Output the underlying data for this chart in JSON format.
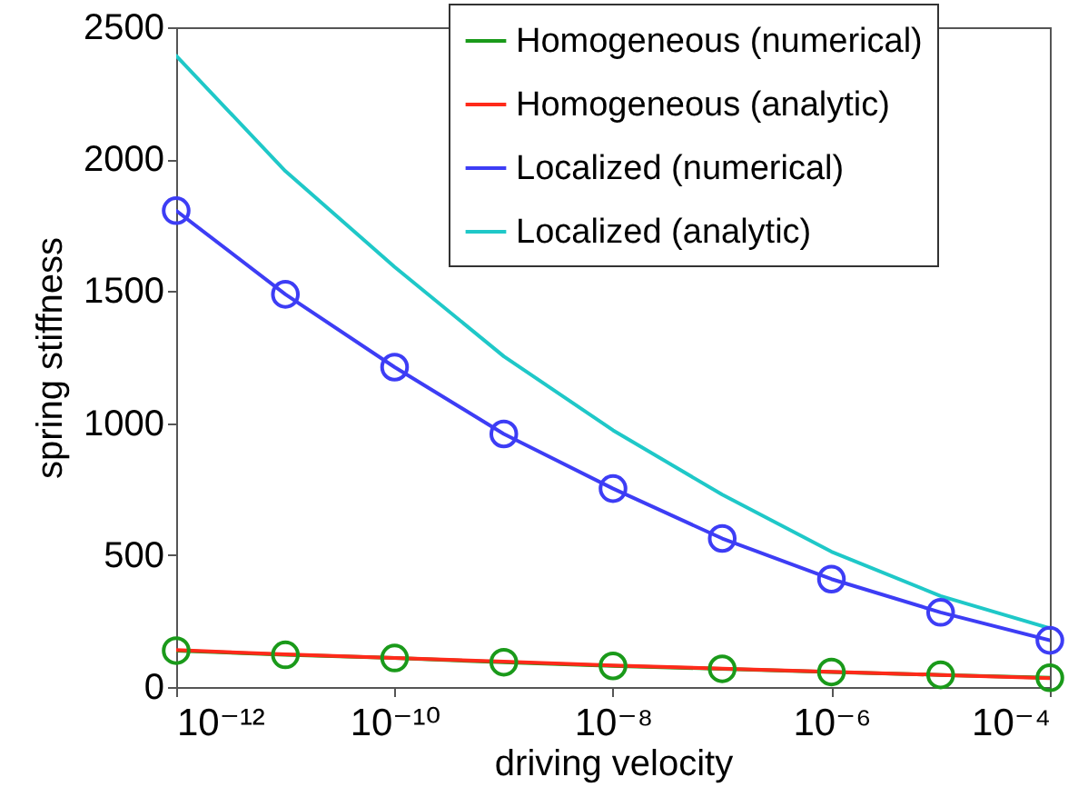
{
  "chart_data": {
    "type": "line",
    "xlabel": "driving velocity",
    "ylabel": "spring stiffness",
    "log": "x",
    "grid": false,
    "legend": "top right",
    "x": [
      1e-12,
      1e-11,
      1e-10,
      1e-09,
      1e-08,
      1e-07,
      1e-06,
      1e-05,
      0.0001
    ],
    "xlim": [
      1e-12,
      0.0001
    ],
    "xticks": [
      {
        "value": 1e-12,
        "label": "10⁻¹²"
      },
      {
        "value": 1e-10,
        "label": "10⁻¹⁰"
      },
      {
        "value": 1e-08,
        "label": "10⁻⁸"
      },
      {
        "value": 1e-06,
        "label": "10⁻⁶"
      },
      {
        "value": 0.0001,
        "label": "10⁻⁴"
      }
    ],
    "ylim": [
      0,
      2500
    ],
    "yticks": [
      0,
      500,
      1000,
      1500,
      2000,
      2500
    ],
    "series": [
      {
        "name": "Homogeneous (numerical)",
        "color": "#1a9a1a",
        "marker": "circle",
        "values": [
          138,
          122,
          110,
          94,
          80,
          69,
          57,
          46,
          35
        ]
      },
      {
        "name": "Homogeneous (analytic)",
        "color": "#ff2a1a",
        "marker": "none",
        "values": [
          140,
          124,
          110,
          96,
          82,
          70,
          58,
          46,
          34
        ]
      },
      {
        "name": "Localized (numerical)",
        "color": "#3d3df5",
        "marker": "circle",
        "values": [
          1805,
          1488,
          1212,
          959,
          752,
          563,
          409,
          283,
          177
        ]
      },
      {
        "name": "Localized (analytic)",
        "color": "#1fc8c8",
        "marker": "none",
        "values": [
          2392,
          1955,
          1592,
          1253,
          973,
          729,
          513,
          345,
          223
        ]
      }
    ]
  }
}
